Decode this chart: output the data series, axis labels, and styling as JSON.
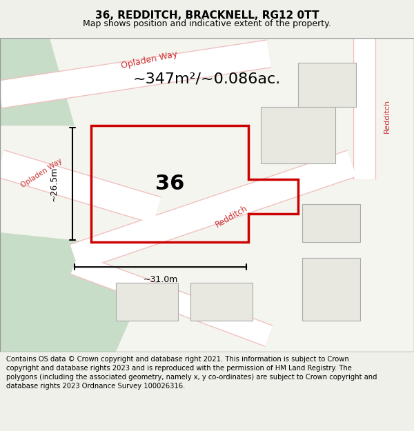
{
  "title": "36, REDDITCH, BRACKNELL, RG12 0TT",
  "subtitle": "Map shows position and indicative extent of the property.",
  "area_text": "~347m²/~0.086ac.",
  "number": "36",
  "dim_width": "~31.0m",
  "dim_height": "~26.5m",
  "footer": "Contains OS data © Crown copyright and database right 2021. This information is subject to Crown copyright and database rights 2023 and is reproduced with the permission of HM Land Registry. The polygons (including the associated geometry, namely x, y co-ordinates) are subject to Crown copyright and database rights 2023 Ordnance Survey 100026316.",
  "bg_color": "#f0f0eb",
  "map_bg": "#f5f5f0",
  "road_color": "#ffffff",
  "plot_line_color": "#cc0000",
  "green_area_color": "#c8ddc8",
  "building_fill": "#e8e8e0",
  "road_label_color": "#cc3333",
  "title_fontsize": 11,
  "subtitle_fontsize": 9,
  "footer_fontsize": 7.2
}
